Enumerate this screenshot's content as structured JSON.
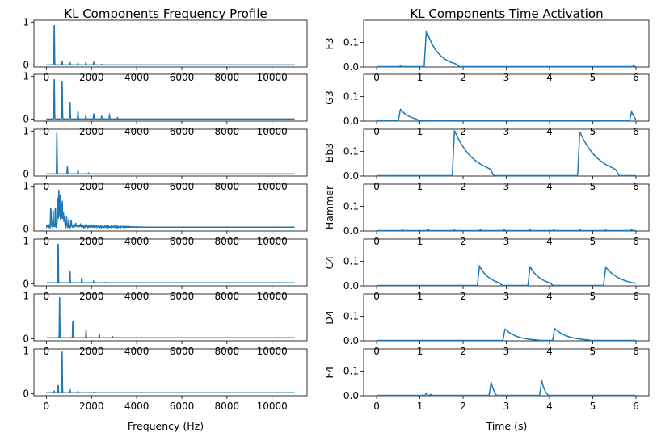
{
  "chart_data": [
    {
      "type": "line",
      "title": "KL Components Frequency Profile",
      "xlabel": "Frequency (Hz)",
      "xlim": [
        -550,
        11550
      ],
      "ylim": [
        -0.05,
        1.05
      ],
      "xticks": [
        0,
        2000,
        4000,
        6000,
        8000,
        10000
      ],
      "xtick_labels": [
        "0",
        "2000",
        "4000",
        "6000",
        "8000",
        "10000"
      ],
      "yticks": [
        0,
        1
      ],
      "ytick_labels": [
        "0",
        "1"
      ],
      "line_color": "#1f77b4",
      "series": [
        {
          "peaks": [
            [
              350,
              1.0
            ],
            [
              700,
              0.1
            ],
            [
              1050,
              0.05
            ],
            [
              1400,
              0.04
            ],
            [
              1750,
              0.06
            ],
            [
              2100,
              0.06
            ],
            [
              2450,
              0.01
            ]
          ],
          "base": 0.0
        },
        {
          "peaks": [
            [
              350,
              1.0
            ],
            [
              700,
              0.9
            ],
            [
              1050,
              0.42
            ],
            [
              1400,
              0.18
            ],
            [
              1750,
              0.08
            ],
            [
              2100,
              0.13
            ],
            [
              2450,
              0.06
            ],
            [
              2800,
              0.1
            ],
            [
              3150,
              0.03
            ]
          ],
          "base": 0.0
        },
        {
          "peaks": [
            [
              466,
              1.0
            ],
            [
              932,
              0.18
            ],
            [
              1398,
              0.08
            ],
            [
              1864,
              0.02
            ]
          ],
          "base": 0.0
        },
        {
          "peaks": [
            [
              200,
              0.55
            ],
            [
              300,
              0.45
            ],
            [
              400,
              0.5
            ],
            [
              500,
              0.75
            ],
            [
              550,
              1.0
            ],
            [
              600,
              0.9
            ],
            [
              650,
              0.6
            ],
            [
              700,
              0.85
            ],
            [
              750,
              0.55
            ],
            [
              800,
              0.45
            ],
            [
              900,
              0.35
            ],
            [
              1000,
              0.25
            ],
            [
              1100,
              0.2
            ],
            [
              1300,
              0.13
            ],
            [
              1500,
              0.1
            ],
            [
              1800,
              0.08
            ],
            [
              2200,
              0.06
            ],
            [
              2600,
              0.05
            ],
            [
              3200,
              0.04
            ],
            [
              4000,
              0.03
            ]
          ],
          "base": 0.04,
          "noise": true
        },
        {
          "peaks": [
            [
              523,
              1.0
            ],
            [
              1046,
              0.3
            ],
            [
              1569,
              0.15
            ],
            [
              2092,
              0.06
            ],
            [
              2615,
              0.03
            ]
          ],
          "base": 0.02
        },
        {
          "peaks": [
            [
              587,
              1.0
            ],
            [
              1174,
              0.45
            ],
            [
              1761,
              0.2
            ],
            [
              2348,
              0.12
            ],
            [
              2935,
              0.05
            ]
          ],
          "base": 0.02
        },
        {
          "peaks": [
            [
              350,
              0.06
            ],
            [
              525,
              0.2
            ],
            [
              698,
              1.0
            ],
            [
              1050,
              0.08
            ],
            [
              1396,
              0.06
            ],
            [
              2094,
              0.03
            ],
            [
              2792,
              0.02
            ],
            [
              3490,
              0.02
            ]
          ],
          "base": 0.02
        }
      ]
    },
    {
      "type": "line",
      "title": "KL Components Time Activation",
      "xlabel": "Time (s)",
      "xlim": [
        -0.3,
        6.3
      ],
      "ylim": [
        0,
        0.19
      ],
      "xticks": [
        0,
        1,
        2,
        3,
        4,
        5,
        6
      ],
      "xtick_labels": [
        "0",
        "1",
        "2",
        "3",
        "4",
        "5",
        "6"
      ],
      "yticks": [
        0.0,
        0.1
      ],
      "ytick_labels": [
        "0.0",
        "0.1"
      ],
      "line_color": "#1f77b4",
      "series": [
        {
          "name": "F3",
          "onsets": [
            [
              1.15,
              0.15,
              0.28,
              0.8
            ]
          ],
          "blips": [
            [
              0.55,
              0.004
            ],
            [
              5.95,
              0.006
            ]
          ]
        },
        {
          "name": "G3",
          "onsets": [
            [
              0.55,
              0.048,
              0.22,
              0.45
            ],
            [
              5.9,
              0.038,
              0.1,
              0.1
            ]
          ],
          "blips": []
        },
        {
          "name": "Bb3",
          "onsets": [
            [
              1.8,
              0.185,
              0.45,
              0.95
            ],
            [
              4.7,
              0.18,
              0.45,
              0.95
            ]
          ],
          "blips": []
        },
        {
          "name": "Hammer",
          "onsets": [],
          "blips": [
            [
              0.6,
              0.004
            ],
            [
              1.2,
              0.005
            ],
            [
              1.8,
              0.004
            ],
            [
              2.4,
              0.005
            ],
            [
              2.95,
              0.006
            ],
            [
              3.55,
              0.005
            ],
            [
              4.1,
              0.005
            ],
            [
              4.7,
              0.006
            ],
            [
              5.3,
              0.004
            ],
            [
              5.9,
              0.005
            ]
          ]
        },
        {
          "name": "C4",
          "onsets": [
            [
              2.38,
              0.08,
              0.25,
              0.55
            ],
            [
              3.55,
              0.078,
              0.25,
              0.55
            ],
            [
              5.3,
              0.076,
              0.35,
              0.9
            ]
          ],
          "blips": []
        },
        {
          "name": "D4",
          "onsets": [
            [
              2.97,
              0.048,
              0.28,
              0.9
            ],
            [
              4.12,
              0.05,
              0.3,
              0.9
            ]
          ],
          "blips": []
        },
        {
          "name": "F4",
          "onsets": [
            [
              2.65,
              0.055,
              0.07,
              0.12
            ],
            [
              3.82,
              0.063,
              0.07,
              0.15
            ]
          ],
          "blips": [
            [
              1.15,
              0.012
            ],
            [
              1.25,
              0.005
            ]
          ]
        }
      ]
    }
  ]
}
